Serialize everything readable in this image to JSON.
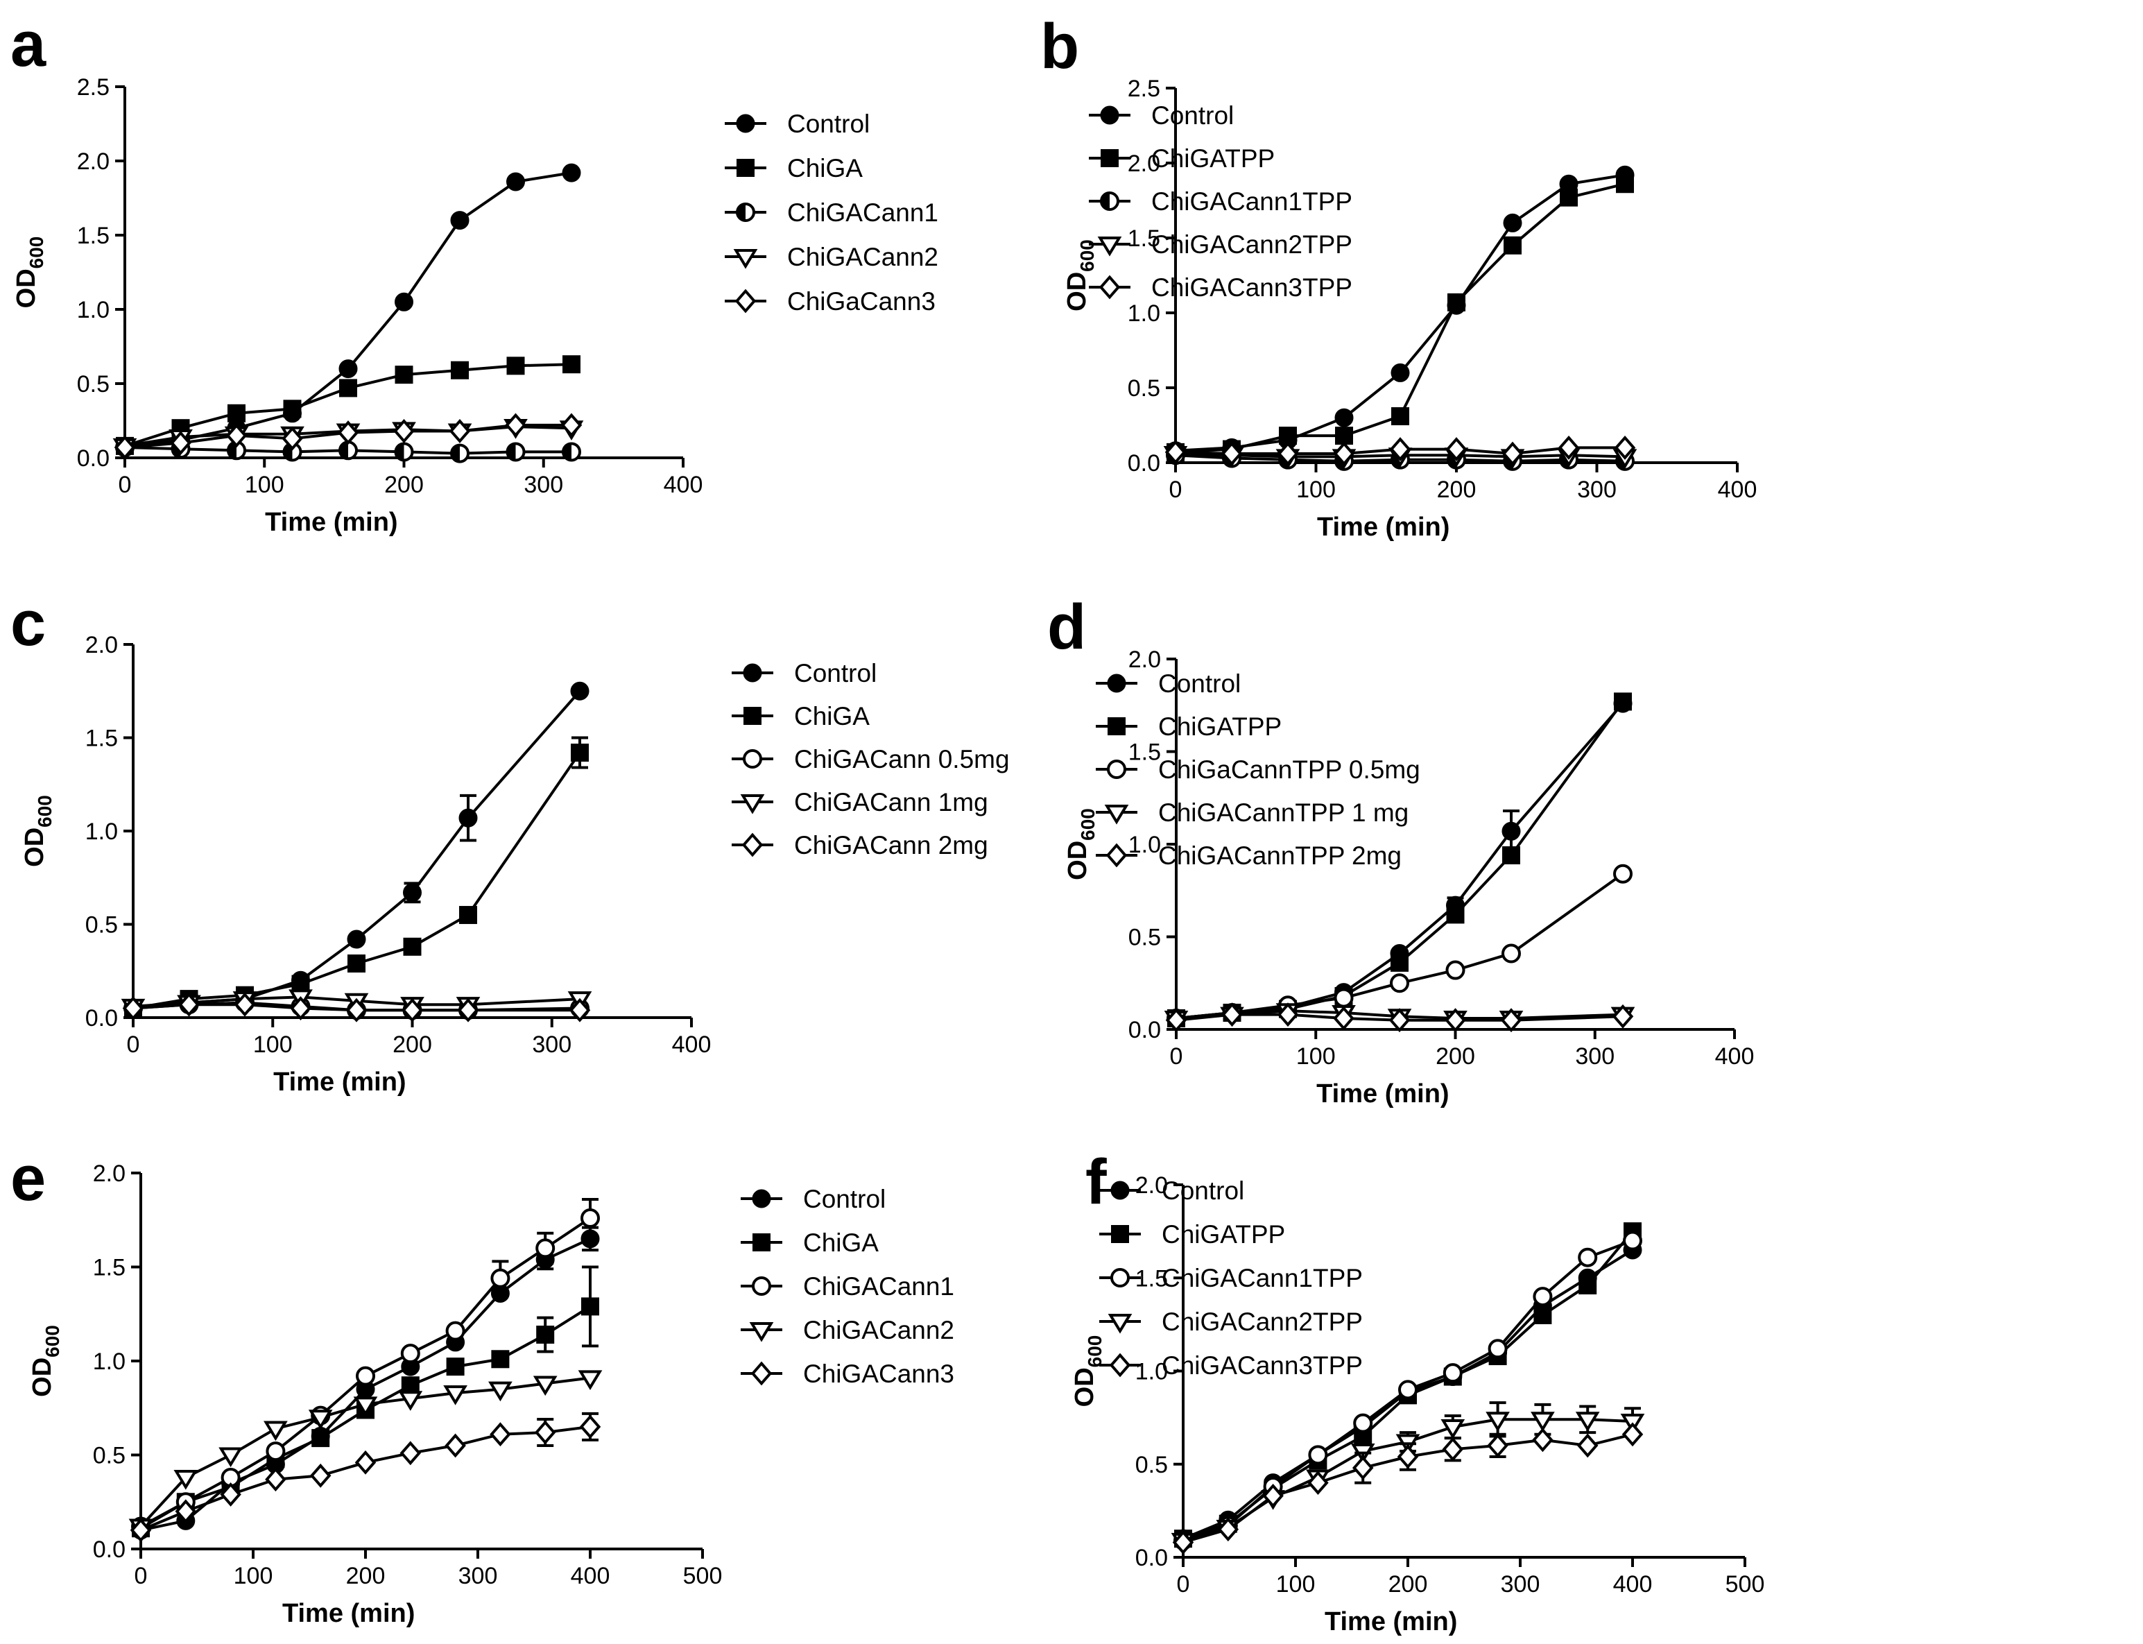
{
  "chart_data": [
    {
      "panel": "a",
      "type": "line",
      "xlabel": "Time (min)",
      "ylabel": "OD",
      "ylabel_sub": "600",
      "xlim": [
        0,
        400
      ],
      "ylim": [
        0,
        2.5
      ],
      "xticks": [
        "0",
        "100",
        "200",
        "300",
        "400"
      ],
      "yticks": [
        "0.0",
        "0.5",
        "1.0",
        "1.5",
        "2.0",
        "2.5"
      ],
      "series": [
        {
          "name": "Control",
          "marker": "circle-filled",
          "x": [
            0,
            40,
            80,
            120,
            160,
            200,
            240,
            280,
            320
          ],
          "values": [
            0.07,
            0.12,
            0.2,
            0.3,
            0.6,
            1.05,
            1.6,
            1.86,
            1.92
          ]
        },
        {
          "name": "ChiGA",
          "marker": "square-filled",
          "x": [
            0,
            40,
            80,
            120,
            160,
            200,
            240,
            280,
            320
          ],
          "values": [
            0.08,
            0.2,
            0.3,
            0.33,
            0.47,
            0.56,
            0.59,
            0.62,
            0.63
          ]
        },
        {
          "name": "ChiGACann1",
          "marker": "circle-half",
          "x": [
            0,
            40,
            80,
            120,
            160,
            200,
            240,
            280,
            320
          ],
          "values": [
            0.07,
            0.06,
            0.05,
            0.04,
            0.05,
            0.04,
            0.03,
            0.04,
            0.04
          ]
        },
        {
          "name": "ChiGACann2",
          "marker": "triangle-down",
          "x": [
            0,
            40,
            80,
            120,
            160,
            200,
            240,
            280,
            320
          ],
          "values": [
            0.08,
            0.14,
            0.16,
            0.16,
            0.18,
            0.19,
            0.18,
            0.21,
            0.2
          ]
        },
        {
          "name": "ChiGaCann3",
          "marker": "diamond",
          "x": [
            0,
            40,
            80,
            120,
            160,
            200,
            240,
            280,
            320
          ],
          "values": [
            0.07,
            0.1,
            0.15,
            0.13,
            0.17,
            0.18,
            0.18,
            0.22,
            0.22
          ]
        }
      ]
    },
    {
      "panel": "b",
      "type": "line",
      "xlabel": "Time (min)",
      "ylabel": "OD",
      "ylabel_sub": "600",
      "xlim": [
        0,
        400
      ],
      "ylim": [
        0,
        2.5
      ],
      "xticks": [
        "0",
        "100",
        "200",
        "300",
        "400"
      ],
      "yticks": [
        "0.0",
        "0.5",
        "1.0",
        "1.5",
        "2.0",
        "2.5"
      ],
      "series": [
        {
          "name": "Control",
          "marker": "circle-filled",
          "x": [
            0,
            40,
            80,
            120,
            160,
            200,
            240,
            280,
            320
          ],
          "values": [
            0.08,
            0.1,
            0.15,
            0.3,
            0.6,
            1.05,
            1.6,
            1.86,
            1.92
          ]
        },
        {
          "name": "ChiGATPP",
          "marker": "square-filled",
          "x": [
            0,
            40,
            80,
            120,
            160,
            200,
            240,
            280,
            320
          ],
          "values": [
            0.07,
            0.09,
            0.18,
            0.18,
            0.31,
            1.07,
            1.45,
            1.77,
            1.86
          ]
        },
        {
          "name": "ChiGACann1TPP",
          "marker": "circle-half",
          "x": [
            0,
            40,
            80,
            120,
            160,
            200,
            240,
            280,
            320
          ],
          "values": [
            0.05,
            0.03,
            0.02,
            0.01,
            0.02,
            0.02,
            0.01,
            0.02,
            0.01
          ]
        },
        {
          "name": "ChiGACann2TPP",
          "marker": "triangle-down",
          "x": [
            0,
            40,
            80,
            120,
            160,
            200,
            240,
            280,
            320
          ],
          "values": [
            0.06,
            0.05,
            0.04,
            0.04,
            0.05,
            0.05,
            0.04,
            0.05,
            0.04
          ]
        },
        {
          "name": "ChiGACann3TPP",
          "marker": "diamond",
          "x": [
            0,
            40,
            80,
            120,
            160,
            200,
            240,
            280,
            320
          ],
          "values": [
            0.07,
            0.06,
            0.06,
            0.06,
            0.09,
            0.09,
            0.06,
            0.1,
            0.1
          ]
        }
      ]
    },
    {
      "panel": "c",
      "type": "line",
      "xlabel": "Time (min)",
      "ylabel": "OD",
      "ylabel_sub": "600",
      "xlim": [
        0,
        400
      ],
      "ylim": [
        0,
        2.0
      ],
      "xticks": [
        "0",
        "100",
        "200",
        "300",
        "400"
      ],
      "yticks": [
        "0.0",
        "0.5",
        "1.0",
        "1.5",
        "2.0"
      ],
      "series": [
        {
          "name": "Control",
          "marker": "circle-filled",
          "x": [
            0,
            40,
            80,
            120,
            160,
            200,
            240,
            320
          ],
          "values": [
            0.05,
            0.08,
            0.1,
            0.2,
            0.42,
            0.67,
            1.07,
            1.75
          ],
          "err": [
            0,
            0,
            0,
            0,
            0,
            0.05,
            0.12,
            0
          ]
        },
        {
          "name": "ChiGA",
          "marker": "square-filled",
          "x": [
            0,
            40,
            80,
            120,
            160,
            200,
            240,
            320
          ],
          "values": [
            0.05,
            0.1,
            0.12,
            0.18,
            0.29,
            0.38,
            0.55,
            1.42
          ],
          "err": [
            0,
            0,
            0,
            0,
            0,
            0,
            0,
            0.08
          ]
        },
        {
          "name": "ChiGACann 0.5mg",
          "marker": "circle-open",
          "x": [
            0,
            40,
            80,
            120,
            160,
            200,
            240,
            320
          ],
          "values": [
            0.05,
            0.07,
            0.08,
            0.06,
            0.04,
            0.04,
            0.04,
            0.05
          ]
        },
        {
          "name": "ChiGACann 1mg",
          "marker": "triangle-down",
          "x": [
            0,
            40,
            80,
            120,
            160,
            200,
            240,
            320
          ],
          "values": [
            0.06,
            0.08,
            0.1,
            0.11,
            0.09,
            0.07,
            0.07,
            0.1
          ]
        },
        {
          "name": "ChiGACann 2mg",
          "marker": "diamond",
          "x": [
            0,
            40,
            80,
            120,
            160,
            200,
            240,
            320
          ],
          "values": [
            0.05,
            0.07,
            0.07,
            0.05,
            0.04,
            0.04,
            0.04,
            0.04
          ]
        }
      ]
    },
    {
      "panel": "d",
      "type": "line",
      "xlabel": "Time (min)",
      "ylabel": "OD",
      "ylabel_sub": "600",
      "xlim": [
        0,
        400
      ],
      "ylim": [
        0,
        2.0
      ],
      "xticks": [
        "0",
        "100",
        "200",
        "300",
        "400"
      ],
      "yticks": [
        "0.0",
        "0.5",
        "1.0",
        "1.5",
        "2.0"
      ],
      "series": [
        {
          "name": "Control",
          "marker": "circle-filled",
          "x": [
            0,
            40,
            80,
            120,
            160,
            200,
            240,
            320
          ],
          "values": [
            0.06,
            0.09,
            0.12,
            0.2,
            0.41,
            0.67,
            1.07,
            1.76
          ],
          "err": [
            0,
            0,
            0,
            0,
            0,
            0.04,
            0.11,
            0
          ]
        },
        {
          "name": "ChiGATPP",
          "marker": "square-filled",
          "x": [
            0,
            40,
            80,
            120,
            160,
            200,
            240,
            320
          ],
          "values": [
            0.06,
            0.09,
            0.11,
            0.18,
            0.36,
            0.62,
            0.94,
            1.77
          ]
        },
        {
          "name": "ChiGaCannTPP 0.5mg",
          "marker": "circle-open",
          "x": [
            0,
            40,
            80,
            120,
            160,
            200,
            240,
            320
          ],
          "values": [
            0.06,
            0.09,
            0.13,
            0.17,
            0.25,
            0.32,
            0.41,
            0.84
          ]
        },
        {
          "name": "ChiGACannTPP 1 mg",
          "marker": "triangle-down",
          "x": [
            0,
            40,
            80,
            120,
            160,
            200,
            240,
            320
          ],
          "values": [
            0.06,
            0.08,
            0.1,
            0.09,
            0.07,
            0.06,
            0.06,
            0.08
          ]
        },
        {
          "name": "ChiGACannTPP 2mg",
          "marker": "diamond",
          "x": [
            0,
            40,
            80,
            120,
            160,
            200,
            240,
            320
          ],
          "values": [
            0.05,
            0.08,
            0.08,
            0.06,
            0.05,
            0.05,
            0.05,
            0.07
          ]
        }
      ]
    },
    {
      "panel": "e",
      "type": "line",
      "xlabel": "Time (min)",
      "ylabel": "OD",
      "ylabel_sub": "600",
      "xlim": [
        0,
        500
      ],
      "ylim": [
        0,
        2.0
      ],
      "xticks": [
        "0",
        "100",
        "200",
        "300",
        "400",
        "500"
      ],
      "yticks": [
        "0.0",
        "0.5",
        "1.0",
        "1.5",
        "2.0"
      ],
      "series": [
        {
          "name": "Control",
          "marker": "circle-filled",
          "x": [
            0,
            40,
            80,
            120,
            160,
            200,
            240,
            280,
            320,
            360,
            400
          ],
          "values": [
            0.1,
            0.15,
            0.35,
            0.45,
            0.6,
            0.85,
            0.97,
            1.1,
            1.36,
            1.54,
            1.65
          ],
          "err": [
            0,
            0,
            0,
            0,
            0,
            0,
            0,
            0,
            0,
            0.05,
            0.06
          ]
        },
        {
          "name": "ChiGA",
          "marker": "square-filled",
          "x": [
            0,
            40,
            80,
            120,
            160,
            200,
            240,
            280,
            320,
            360,
            400
          ],
          "values": [
            0.11,
            0.25,
            0.33,
            0.48,
            0.59,
            0.74,
            0.87,
            0.97,
            1.01,
            1.14,
            1.29
          ],
          "err": [
            0,
            0,
            0,
            0,
            0,
            0,
            0,
            0,
            0,
            0.09,
            0.21
          ]
        },
        {
          "name": "ChiGACann1",
          "marker": "circle-open",
          "x": [
            0,
            40,
            80,
            120,
            160,
            200,
            240,
            280,
            320,
            360,
            400
          ],
          "values": [
            0.12,
            0.25,
            0.38,
            0.52,
            0.71,
            0.92,
            1.04,
            1.16,
            1.44,
            1.6,
            1.76
          ],
          "err": [
            0,
            0,
            0,
            0,
            0,
            0,
            0,
            0,
            0.09,
            0.08,
            0.1
          ]
        },
        {
          "name": "ChiGACann2",
          "marker": "triangle-down",
          "x": [
            0,
            40,
            80,
            120,
            160,
            200,
            240,
            280,
            320,
            360,
            400
          ],
          "values": [
            0.12,
            0.38,
            0.5,
            0.64,
            0.7,
            0.77,
            0.8,
            0.83,
            0.85,
            0.88,
            0.91
          ]
        },
        {
          "name": "ChiGACann3",
          "marker": "diamond",
          "x": [
            0,
            40,
            80,
            120,
            160,
            200,
            240,
            280,
            320,
            360,
            400
          ],
          "values": [
            0.1,
            0.2,
            0.29,
            0.37,
            0.39,
            0.46,
            0.51,
            0.55,
            0.61,
            0.62,
            0.65
          ],
          "err": [
            0,
            0,
            0,
            0,
            0,
            0,
            0,
            0,
            0,
            0.07,
            0.07
          ]
        }
      ]
    },
    {
      "panel": "f",
      "type": "line",
      "xlabel": "Time (min)",
      "ylabel": "OD",
      "ylabel_sub": "600",
      "xlim": [
        0,
        500
      ],
      "ylim": [
        0,
        2.0
      ],
      "xticks": [
        "0",
        "100",
        "200",
        "300",
        "400",
        "500"
      ],
      "yticks": [
        "0.0",
        "0.5",
        "1.0",
        "1.5",
        "2.0"
      ],
      "series": [
        {
          "name": "Control",
          "marker": "circle-filled",
          "x": [
            0,
            40,
            80,
            120,
            160,
            200,
            240,
            280,
            320,
            360,
            400
          ],
          "values": [
            0.1,
            0.2,
            0.4,
            0.55,
            0.7,
            0.89,
            0.97,
            1.1,
            1.35,
            1.5,
            1.65
          ]
        },
        {
          "name": "ChiGATPP",
          "marker": "square-filled",
          "x": [
            0,
            40,
            80,
            120,
            160,
            200,
            240,
            280,
            320,
            360,
            400
          ],
          "values": [
            0.1,
            0.18,
            0.37,
            0.52,
            0.65,
            0.87,
            0.97,
            1.08,
            1.3,
            1.46,
            1.75
          ]
        },
        {
          "name": "ChiGACann1TPP",
          "marker": "circle-open",
          "x": [
            0,
            40,
            80,
            120,
            160,
            200,
            240,
            280,
            320,
            360,
            400
          ],
          "values": [
            0.09,
            0.17,
            0.38,
            0.55,
            0.72,
            0.9,
            0.99,
            1.12,
            1.4,
            1.61,
            1.7
          ]
        },
        {
          "name": "ChiGACann2TPP",
          "marker": "triangle-down",
          "x": [
            0,
            40,
            80,
            120,
            160,
            200,
            240,
            280,
            320,
            360,
            400
          ],
          "values": [
            0.09,
            0.16,
            0.32,
            0.43,
            0.57,
            0.62,
            0.7,
            0.74,
            0.74,
            0.74,
            0.73
          ],
          "err": [
            0,
            0,
            0,
            0,
            0,
            0.05,
            0.06,
            0.09,
            0.08,
            0.07,
            0.07
          ]
        },
        {
          "name": "ChiGACann3TPP",
          "marker": "diamond",
          "x": [
            0,
            40,
            80,
            120,
            160,
            200,
            240,
            280,
            320,
            360,
            400
          ],
          "values": [
            0.08,
            0.15,
            0.33,
            0.4,
            0.48,
            0.54,
            0.58,
            0.6,
            0.63,
            0.6,
            0.66
          ],
          "err": [
            0,
            0,
            0,
            0,
            0.08,
            0.07,
            0.06,
            0.06,
            0,
            0,
            0
          ]
        }
      ]
    }
  ]
}
